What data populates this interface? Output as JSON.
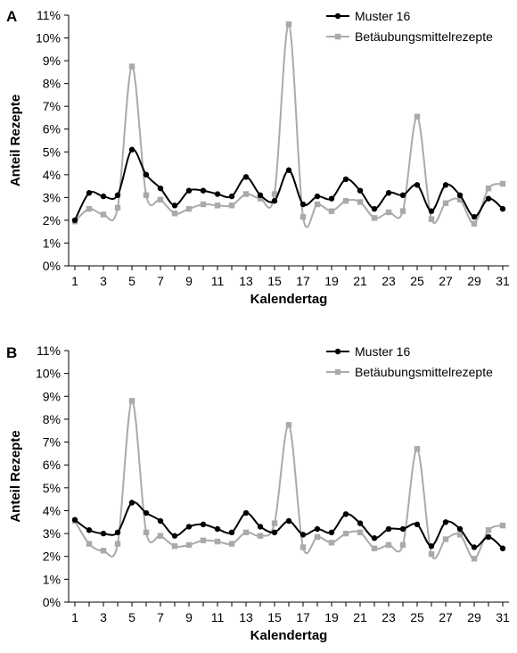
{
  "chart_data": [
    {
      "panel": "A",
      "type": "line",
      "xlabel": "Kalendertag",
      "ylabel": "Anteil Rezepte",
      "ylim": [
        0,
        11
      ],
      "y_ticks": [
        "0%",
        "1%",
        "2%",
        "3%",
        "4%",
        "5%",
        "6%",
        "7%",
        "8%",
        "9%",
        "10%",
        "11%"
      ],
      "x": [
        1,
        2,
        3,
        4,
        5,
        6,
        7,
        8,
        9,
        10,
        11,
        12,
        13,
        14,
        15,
        16,
        17,
        18,
        19,
        20,
        21,
        22,
        23,
        24,
        25,
        26,
        27,
        28,
        29,
        30,
        31
      ],
      "x_tick_labels": [
        "1",
        "3",
        "5",
        "7",
        "9",
        "11",
        "13",
        "15",
        "17",
        "19",
        "21",
        "23",
        "25",
        "27",
        "29",
        "31"
      ],
      "legend_position": "top-right",
      "grid": false,
      "series": [
        {
          "name": "Muster 16",
          "color": "#000000",
          "marker": "circle",
          "values": [
            2.0,
            3.2,
            3.05,
            3.1,
            5.1,
            4.0,
            3.4,
            2.65,
            3.3,
            3.3,
            3.15,
            3.05,
            3.9,
            3.1,
            2.85,
            4.2,
            2.7,
            3.05,
            2.95,
            3.8,
            3.3,
            2.5,
            3.2,
            3.1,
            3.55,
            2.4,
            3.55,
            3.1,
            2.15,
            2.95,
            2.5
          ]
        },
        {
          "name": "Betäubungsmittelrezepte",
          "color": "#aaaaaa",
          "marker": "square",
          "values": [
            1.95,
            2.5,
            2.25,
            2.55,
            8.75,
            3.1,
            2.9,
            2.3,
            2.5,
            2.7,
            2.65,
            2.65,
            3.15,
            2.95,
            3.15,
            10.6,
            2.15,
            2.7,
            2.4,
            2.85,
            2.8,
            2.1,
            2.35,
            2.4,
            6.55,
            2.05,
            2.75,
            2.9,
            1.85,
            3.4,
            3.6
          ]
        }
      ]
    },
    {
      "panel": "B",
      "type": "line",
      "xlabel": "Kalendertag",
      "ylabel": "Anteil Rezepte",
      "ylim": [
        0,
        11
      ],
      "y_ticks": [
        "0%",
        "1%",
        "2%",
        "3%",
        "4%",
        "5%",
        "6%",
        "7%",
        "8%",
        "9%",
        "10%",
        "11%"
      ],
      "x": [
        1,
        2,
        3,
        4,
        5,
        6,
        7,
        8,
        9,
        10,
        11,
        12,
        13,
        14,
        15,
        16,
        17,
        18,
        19,
        20,
        21,
        22,
        23,
        24,
        25,
        26,
        27,
        28,
        29,
        30,
        31
      ],
      "x_tick_labels": [
        "1",
        "3",
        "5",
        "7",
        "9",
        "11",
        "13",
        "15",
        "17",
        "19",
        "21",
        "23",
        "25",
        "27",
        "29",
        "31"
      ],
      "legend_position": "top-right",
      "grid": false,
      "series": [
        {
          "name": "Muster 16",
          "color": "#000000",
          "marker": "circle",
          "values": [
            3.6,
            3.15,
            3.0,
            3.05,
            4.35,
            3.9,
            3.55,
            2.9,
            3.3,
            3.4,
            3.2,
            3.05,
            3.9,
            3.3,
            3.05,
            3.55,
            2.95,
            3.2,
            3.05,
            3.85,
            3.45,
            2.8,
            3.2,
            3.2,
            3.4,
            2.45,
            3.5,
            3.2,
            2.4,
            2.85,
            2.35
          ]
        },
        {
          "name": "Betäubungsmittelrezepte",
          "color": "#aaaaaa",
          "marker": "square",
          "values": [
            3.55,
            2.55,
            2.25,
            2.55,
            8.8,
            3.05,
            2.9,
            2.45,
            2.5,
            2.7,
            2.65,
            2.55,
            3.05,
            2.9,
            3.45,
            7.75,
            2.4,
            2.85,
            2.6,
            3.0,
            3.05,
            2.35,
            2.5,
            2.5,
            6.7,
            2.1,
            2.75,
            2.95,
            1.9,
            3.15,
            3.35
          ]
        }
      ]
    }
  ]
}
